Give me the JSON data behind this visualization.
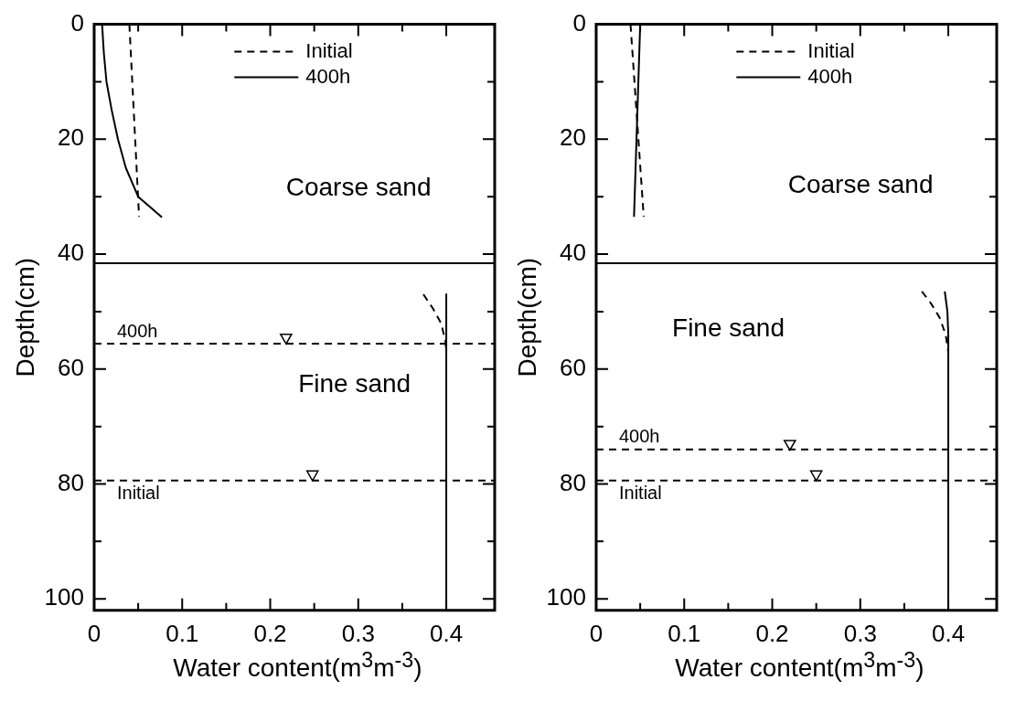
{
  "chart_data": [
    {
      "type": "line",
      "xlabel": "Water content(m$^{3}$m$^{-3}$)",
      "ylabel": "Depth(cm)",
      "xlim": [
        0,
        0.455
      ],
      "ylim": [
        102,
        0
      ],
      "xticks": [
        0,
        {
          "value": 0.05,
          "label": null
        },
        0.1,
        {
          "value": 0.15,
          "label": null
        },
        0.2,
        {
          "value": 0.25,
          "label": null
        },
        0.3,
        {
          "value": 0.35,
          "label": null
        },
        0.4
      ],
      "yticks": [
        0,
        {
          "value": 10,
          "label": null
        },
        20,
        {
          "value": 30,
          "label": null
        },
        40,
        {
          "value": 50,
          "label": null
        },
        60,
        {
          "value": 70,
          "label": null
        },
        80,
        {
          "value": 90,
          "label": null
        },
        100
      ],
      "legend": "top right",
      "series": [
        {
          "name": "Initial",
          "color": "#000000",
          "line_style": "dashed",
          "x": [
            0.04,
            0.051,
            null,
            0.374,
            0.385,
            0.394,
            0.399,
            0.4
          ],
          "values": [
            0,
            33.5,
            null,
            47,
            49.5,
            52,
            55,
            57
          ]
        },
        {
          "name": "400h",
          "color": "#000000",
          "line_style": "solid",
          "x": [
            0.009,
            0.011,
            0.014,
            0.02,
            0.027,
            0.036,
            0.05,
            0.077,
            null,
            0.4,
            0.4
          ],
          "values": [
            0,
            5,
            10,
            15,
            20,
            25,
            30,
            33.6,
            null,
            47,
            102
          ]
        },
        {
          "type": "scatter",
          "color": "#000000",
          "marker": "triangle",
          "x": [
            0.218,
            0.248
          ],
          "values": [
            54.5,
            78.3
          ]
        }
      ],
      "ref_lines": [
        {
          "axis": "y",
          "value": 41.6,
          "line_style": "solid"
        },
        {
          "axis": "y",
          "value": 55.6,
          "label": "400h",
          "line_style": "dashed"
        },
        {
          "axis": "y",
          "value": 79.4,
          "label": "Initial",
          "line_style": "dashed"
        }
      ],
      "annotations": [
        "Coarse sand",
        "Fine sand"
      ]
    },
    {
      "type": "line",
      "xlabel": "Water content(m$^{3}$m$^{-3}$)",
      "ylabel": "Depth(cm)",
      "xlim": [
        0,
        0.455
      ],
      "ylim": [
        102,
        0
      ],
      "xticks": [
        0,
        {
          "value": 0.05,
          "label": null
        },
        0.1,
        {
          "value": 0.15,
          "label": null
        },
        0.2,
        {
          "value": 0.25,
          "label": null
        },
        0.3,
        {
          "value": 0.35,
          "label": null
        },
        0.4
      ],
      "yticks": [
        0,
        {
          "value": 10,
          "label": null
        },
        20,
        {
          "value": 30,
          "label": null
        },
        40,
        {
          "value": 50,
          "label": null
        },
        60,
        {
          "value": 70,
          "label": null
        },
        80,
        {
          "value": 90,
          "label": null
        },
        100
      ],
      "legend": "top right",
      "series": [
        {
          "name": "Initial",
          "color": "#000000",
          "line_style": "dashed",
          "x": [
            0.039,
            0.054,
            null,
            0.37,
            0.38,
            0.39,
            0.397,
            0.4
          ],
          "values": [
            0,
            33.5,
            null,
            46.5,
            48.5,
            51,
            54,
            57
          ]
        },
        {
          "name": "400h",
          "color": "#000000",
          "line_style": "solid",
          "x": [
            0.05,
            0.043,
            null,
            0.396,
            0.399,
            0.4,
            0.4
          ],
          "values": [
            0,
            33.5,
            null,
            46.5,
            50,
            54,
            102
          ]
        },
        {
          "type": "scatter",
          "color": "#000000",
          "marker": "triangle",
          "x": [
            0.22,
            0.25
          ],
          "values": [
            73,
            78.3
          ]
        }
      ],
      "ref_lines": [
        {
          "axis": "y",
          "value": 41.6,
          "line_style": "solid"
        },
        {
          "axis": "y",
          "value": 74,
          "label": "400h",
          "line_style": "dashed"
        },
        {
          "axis": "y",
          "value": 79.4,
          "label": "Initial",
          "line_style": "dashed"
        }
      ],
      "annotations": [
        "Coarse sand",
        "Fine sand"
      ]
    }
  ]
}
